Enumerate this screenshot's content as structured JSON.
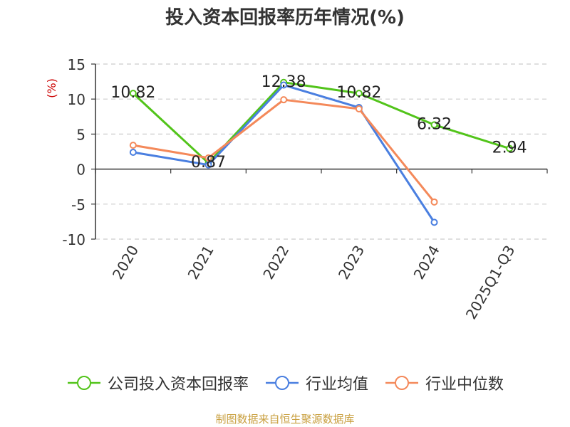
{
  "chart_data": {
    "type": "line",
    "title": "投入资本回报率历年情况(%)",
    "ylabel": "(%)",
    "xlabel": "",
    "categories": [
      "2020",
      "2021",
      "2022",
      "2023",
      "2024",
      "2025Q1-Q3"
    ],
    "ylim": [
      -10,
      15
    ],
    "yticks": [
      15,
      10,
      5,
      0,
      -5,
      -10
    ],
    "ytick_labels": [
      "15",
      "10",
      "5",
      "0",
      "-5",
      "-10"
    ],
    "grid": true,
    "legend_position": "bottom",
    "series": [
      {
        "name": "公司投入资本回报率",
        "color": "#52c41a",
        "values": [
          10.82,
          0.87,
          12.38,
          10.82,
          6.32,
          2.94
        ],
        "labels": [
          "10.82",
          "0.87",
          "12.38",
          "10.82",
          "6.32",
          "2.94"
        ]
      },
      {
        "name": "行业均值",
        "color": "#4a7fe0",
        "values": [
          2.4,
          0.6,
          12.0,
          8.8,
          -7.6,
          null
        ]
      },
      {
        "name": "行业中位数",
        "color": "#f4895a",
        "values": [
          3.4,
          1.6,
          9.9,
          8.6,
          -4.7,
          null
        ]
      }
    ]
  },
  "source": "制图数据来自恒生聚源数据库"
}
